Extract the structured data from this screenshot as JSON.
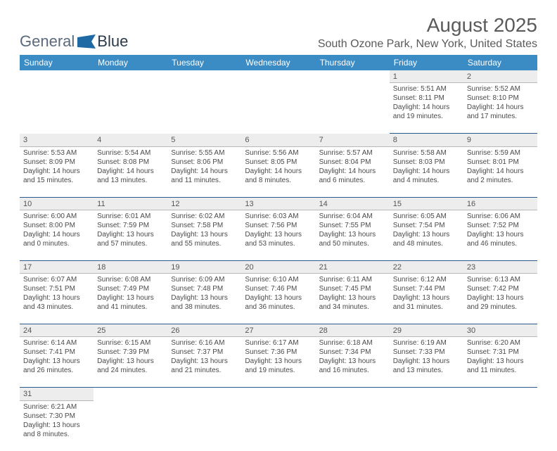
{
  "logo": {
    "text1": "General",
    "text2": "Blue",
    "shape_color": "#1f6aa5"
  },
  "header": {
    "month_title": "August 2025",
    "location": "South Ozone Park, New York, United States"
  },
  "colors": {
    "header_bg": "#3b8bc4",
    "header_fg": "#ffffff",
    "daynum_bg": "#ededed",
    "row_divider": "#2a5a8a",
    "text": "#4a4a4a"
  },
  "days_of_week": [
    "Sunday",
    "Monday",
    "Tuesday",
    "Wednesday",
    "Thursday",
    "Friday",
    "Saturday"
  ],
  "weeks": [
    [
      null,
      null,
      null,
      null,
      null,
      {
        "n": "1",
        "sr": "Sunrise: 5:51 AM",
        "ss": "Sunset: 8:11 PM",
        "d1": "Daylight: 14 hours",
        "d2": "and 19 minutes."
      },
      {
        "n": "2",
        "sr": "Sunrise: 5:52 AM",
        "ss": "Sunset: 8:10 PM",
        "d1": "Daylight: 14 hours",
        "d2": "and 17 minutes."
      }
    ],
    [
      {
        "n": "3",
        "sr": "Sunrise: 5:53 AM",
        "ss": "Sunset: 8:09 PM",
        "d1": "Daylight: 14 hours",
        "d2": "and 15 minutes."
      },
      {
        "n": "4",
        "sr": "Sunrise: 5:54 AM",
        "ss": "Sunset: 8:08 PM",
        "d1": "Daylight: 14 hours",
        "d2": "and 13 minutes."
      },
      {
        "n": "5",
        "sr": "Sunrise: 5:55 AM",
        "ss": "Sunset: 8:06 PM",
        "d1": "Daylight: 14 hours",
        "d2": "and 11 minutes."
      },
      {
        "n": "6",
        "sr": "Sunrise: 5:56 AM",
        "ss": "Sunset: 8:05 PM",
        "d1": "Daylight: 14 hours",
        "d2": "and 8 minutes."
      },
      {
        "n": "7",
        "sr": "Sunrise: 5:57 AM",
        "ss": "Sunset: 8:04 PM",
        "d1": "Daylight: 14 hours",
        "d2": "and 6 minutes."
      },
      {
        "n": "8",
        "sr": "Sunrise: 5:58 AM",
        "ss": "Sunset: 8:03 PM",
        "d1": "Daylight: 14 hours",
        "d2": "and 4 minutes."
      },
      {
        "n": "9",
        "sr": "Sunrise: 5:59 AM",
        "ss": "Sunset: 8:01 PM",
        "d1": "Daylight: 14 hours",
        "d2": "and 2 minutes."
      }
    ],
    [
      {
        "n": "10",
        "sr": "Sunrise: 6:00 AM",
        "ss": "Sunset: 8:00 PM",
        "d1": "Daylight: 14 hours",
        "d2": "and 0 minutes."
      },
      {
        "n": "11",
        "sr": "Sunrise: 6:01 AM",
        "ss": "Sunset: 7:59 PM",
        "d1": "Daylight: 13 hours",
        "d2": "and 57 minutes."
      },
      {
        "n": "12",
        "sr": "Sunrise: 6:02 AM",
        "ss": "Sunset: 7:58 PM",
        "d1": "Daylight: 13 hours",
        "d2": "and 55 minutes."
      },
      {
        "n": "13",
        "sr": "Sunrise: 6:03 AM",
        "ss": "Sunset: 7:56 PM",
        "d1": "Daylight: 13 hours",
        "d2": "and 53 minutes."
      },
      {
        "n": "14",
        "sr": "Sunrise: 6:04 AM",
        "ss": "Sunset: 7:55 PM",
        "d1": "Daylight: 13 hours",
        "d2": "and 50 minutes."
      },
      {
        "n": "15",
        "sr": "Sunrise: 6:05 AM",
        "ss": "Sunset: 7:54 PM",
        "d1": "Daylight: 13 hours",
        "d2": "and 48 minutes."
      },
      {
        "n": "16",
        "sr": "Sunrise: 6:06 AM",
        "ss": "Sunset: 7:52 PM",
        "d1": "Daylight: 13 hours",
        "d2": "and 46 minutes."
      }
    ],
    [
      {
        "n": "17",
        "sr": "Sunrise: 6:07 AM",
        "ss": "Sunset: 7:51 PM",
        "d1": "Daylight: 13 hours",
        "d2": "and 43 minutes."
      },
      {
        "n": "18",
        "sr": "Sunrise: 6:08 AM",
        "ss": "Sunset: 7:49 PM",
        "d1": "Daylight: 13 hours",
        "d2": "and 41 minutes."
      },
      {
        "n": "19",
        "sr": "Sunrise: 6:09 AM",
        "ss": "Sunset: 7:48 PM",
        "d1": "Daylight: 13 hours",
        "d2": "and 38 minutes."
      },
      {
        "n": "20",
        "sr": "Sunrise: 6:10 AM",
        "ss": "Sunset: 7:46 PM",
        "d1": "Daylight: 13 hours",
        "d2": "and 36 minutes."
      },
      {
        "n": "21",
        "sr": "Sunrise: 6:11 AM",
        "ss": "Sunset: 7:45 PM",
        "d1": "Daylight: 13 hours",
        "d2": "and 34 minutes."
      },
      {
        "n": "22",
        "sr": "Sunrise: 6:12 AM",
        "ss": "Sunset: 7:44 PM",
        "d1": "Daylight: 13 hours",
        "d2": "and 31 minutes."
      },
      {
        "n": "23",
        "sr": "Sunrise: 6:13 AM",
        "ss": "Sunset: 7:42 PM",
        "d1": "Daylight: 13 hours",
        "d2": "and 29 minutes."
      }
    ],
    [
      {
        "n": "24",
        "sr": "Sunrise: 6:14 AM",
        "ss": "Sunset: 7:41 PM",
        "d1": "Daylight: 13 hours",
        "d2": "and 26 minutes."
      },
      {
        "n": "25",
        "sr": "Sunrise: 6:15 AM",
        "ss": "Sunset: 7:39 PM",
        "d1": "Daylight: 13 hours",
        "d2": "and 24 minutes."
      },
      {
        "n": "26",
        "sr": "Sunrise: 6:16 AM",
        "ss": "Sunset: 7:37 PM",
        "d1": "Daylight: 13 hours",
        "d2": "and 21 minutes."
      },
      {
        "n": "27",
        "sr": "Sunrise: 6:17 AM",
        "ss": "Sunset: 7:36 PM",
        "d1": "Daylight: 13 hours",
        "d2": "and 19 minutes."
      },
      {
        "n": "28",
        "sr": "Sunrise: 6:18 AM",
        "ss": "Sunset: 7:34 PM",
        "d1": "Daylight: 13 hours",
        "d2": "and 16 minutes."
      },
      {
        "n": "29",
        "sr": "Sunrise: 6:19 AM",
        "ss": "Sunset: 7:33 PM",
        "d1": "Daylight: 13 hours",
        "d2": "and 13 minutes."
      },
      {
        "n": "30",
        "sr": "Sunrise: 6:20 AM",
        "ss": "Sunset: 7:31 PM",
        "d1": "Daylight: 13 hours",
        "d2": "and 11 minutes."
      }
    ],
    [
      {
        "n": "31",
        "sr": "Sunrise: 6:21 AM",
        "ss": "Sunset: 7:30 PM",
        "d1": "Daylight: 13 hours",
        "d2": "and 8 minutes."
      },
      null,
      null,
      null,
      null,
      null,
      null
    ]
  ]
}
